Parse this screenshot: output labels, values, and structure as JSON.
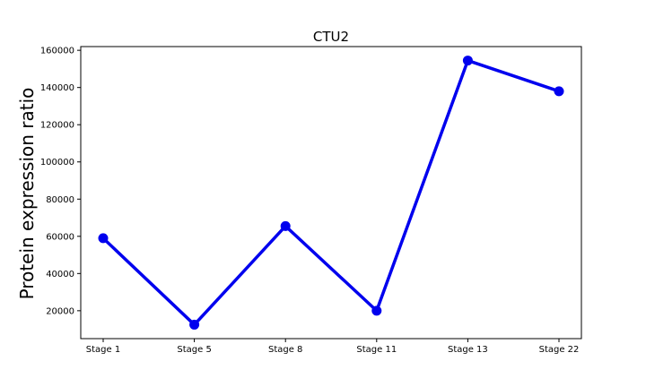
{
  "chart_data": {
    "type": "line",
    "title": "CTU2",
    "xlabel": "",
    "ylabel": "Protein expression ratio",
    "categories": [
      "Stage 1",
      "Stage 5",
      "Stage 8",
      "Stage 11",
      "Stage 13",
      "Stage 22"
    ],
    "series": [
      {
        "values": [
          59000,
          12500,
          65500,
          20000,
          154500,
          138000
        ]
      }
    ],
    "yticks": [
      20000,
      40000,
      60000,
      80000,
      100000,
      120000,
      140000,
      160000
    ],
    "ylim": [
      5000,
      162000
    ],
    "grid": false,
    "legend": "none",
    "colors": {
      "line": "#0000ee",
      "marker": "#0000ee",
      "axes": "#000000",
      "background": "#ffffff"
    }
  }
}
